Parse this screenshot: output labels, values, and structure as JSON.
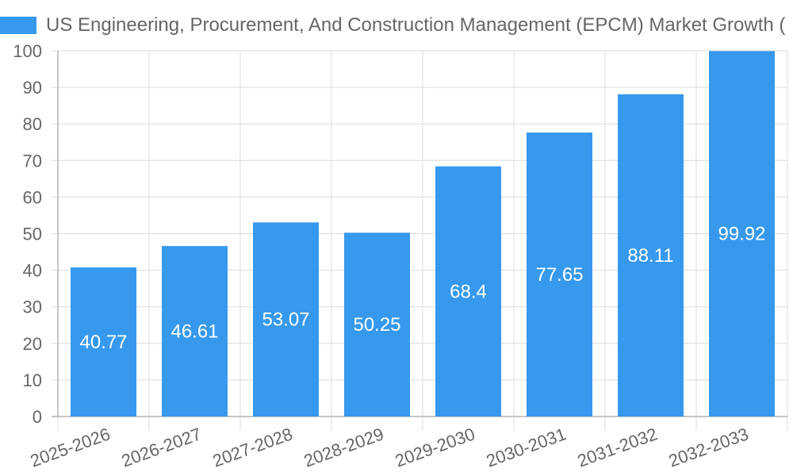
{
  "chart_data": {
    "type": "bar",
    "categories": [
      "2025-2026",
      "2026-2027",
      "2027-2028",
      "2028-2029",
      "2029-2030",
      "2030-2031",
      "2031-2032",
      "2032-2033"
    ],
    "series": [
      {
        "name": "US Engineering, Procurement, And Construction Management (EPCM) Market Growth (",
        "values": [
          40.77,
          46.61,
          53.07,
          50.25,
          68.4,
          77.65,
          88.11,
          99.92
        ]
      }
    ],
    "value_labels": [
      "40.77",
      "46.61",
      "53.07",
      "50.25",
      "68.4",
      "77.65",
      "88.11",
      "99.92"
    ],
    "y_ticks": [
      "0",
      "10",
      "20",
      "30",
      "40",
      "50",
      "60",
      "70",
      "80",
      "90",
      "100"
    ],
    "ylim": [
      0,
      100
    ],
    "grid": true,
    "legend_position": "top-left",
    "colors": {
      "bar": "#3699ee",
      "grid": "#dcdcdc",
      "axis": "#b4b4b4",
      "text": "#666666",
      "label": "#ffffff"
    }
  }
}
